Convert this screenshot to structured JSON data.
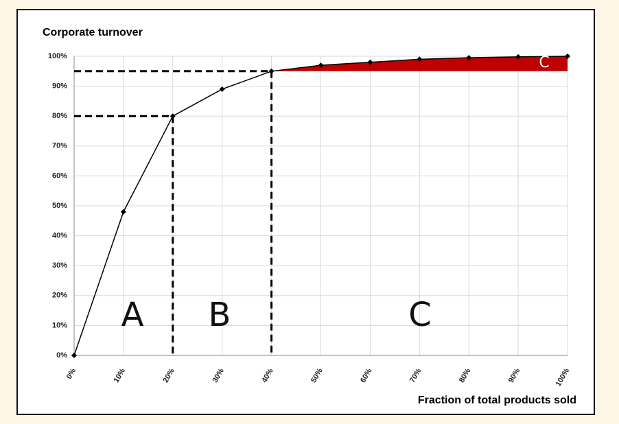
{
  "chart_data": {
    "type": "line",
    "title": "Corporate turnover",
    "x_label": "Fraction of total products sold",
    "x": [
      0,
      10,
      20,
      30,
      40,
      50,
      60,
      70,
      80,
      90,
      100
    ],
    "series": [
      {
        "color": "#000000",
        "values": [
          0,
          48,
          80,
          89,
          95,
          97,
          98,
          99,
          99.5,
          99.8,
          100
        ]
      }
    ],
    "xlim": [
      0,
      100
    ],
    "ylim": [
      0,
      100
    ],
    "xticks": [
      {
        "value": 0,
        "label": "0%"
      },
      {
        "value": 10,
        "label": "10%"
      },
      {
        "value": 20,
        "label": "20%"
      },
      {
        "value": 30,
        "label": "30%"
      },
      {
        "value": 40,
        "label": "40%"
      },
      {
        "value": 50,
        "label": "50%"
      },
      {
        "value": 60,
        "label": "60%"
      },
      {
        "value": 70,
        "label": "70%"
      },
      {
        "value": 80,
        "label": "80%"
      },
      {
        "value": 90,
        "label": "90%"
      },
      {
        "value": 100,
        "label": "100%"
      }
    ],
    "yticks": [
      {
        "value": 0,
        "label": "0%"
      },
      {
        "value": 10,
        "label": "10%"
      },
      {
        "value": 20,
        "label": "20%"
      },
      {
        "value": 30,
        "label": "30%"
      },
      {
        "value": 40,
        "label": "40%"
      },
      {
        "value": 50,
        "label": "50%"
      },
      {
        "value": 60,
        "label": "60%"
      },
      {
        "value": 70,
        "label": "70%"
      },
      {
        "value": 80,
        "label": "80%"
      },
      {
        "value": 90,
        "label": "90%"
      },
      {
        "value": 100,
        "label": "100%"
      }
    ],
    "grid": true,
    "highlight_color": "#c00000",
    "annotations": [
      "A",
      "B",
      "C",
      "C"
    ]
  }
}
